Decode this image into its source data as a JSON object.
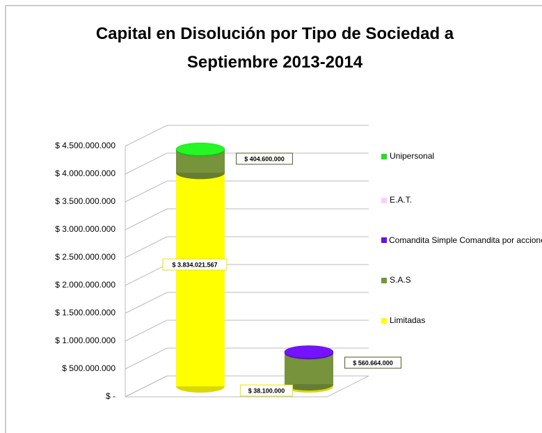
{
  "chart_data": {
    "type": "bar3d_cylinder_stacked",
    "title": "Capital en Disolución  por Tipo de Sociedad a Septiembre 2013-2014",
    "categories": [
      null,
      null
    ],
    "series": [
      {
        "name": "Limitadas",
        "color": "#ffff00",
        "values": [
          3834021567,
          38100000
        ],
        "value_labels": [
          "$ 3.834.021.567",
          "$ 38.100.000"
        ]
      },
      {
        "name": "S.A.S",
        "color": "#77933c",
        "values": [
          404600000,
          560664000
        ],
        "value_labels": [
          "$ 404.600.000",
          "$ 560.664.000"
        ]
      },
      {
        "name": "Comandita Simple Comandita por acciones",
        "color": "#6a10e8",
        "values": [
          0,
          20000000
        ]
      },
      {
        "name": "E.A.T.",
        "color": "#ffccff",
        "values": [
          0,
          0
        ]
      },
      {
        "name": "Unipersonal",
        "color": "#22e022",
        "values": [
          20000000,
          0
        ]
      }
    ],
    "ylim": [
      0,
      4500000000
    ],
    "yticks": [
      {
        "value": 0,
        "label": "$ -"
      },
      {
        "value": 500000000,
        "label": "$ 500.000.000"
      },
      {
        "value": 1000000000,
        "label": "$ 1.000.000.000"
      },
      {
        "value": 1500000000,
        "label": "$ 1.500.000.000"
      },
      {
        "value": 2000000000,
        "label": "$ 2.000.000.000"
      },
      {
        "value": 2500000000,
        "label": "$ 2.500.000.000"
      },
      {
        "value": 3000000000,
        "label": "$ 3.000.000.000"
      },
      {
        "value": 3500000000,
        "label": "$ 3.500.000.000"
      },
      {
        "value": 4000000000,
        "label": "$ 4.000.000.000"
      },
      {
        "value": 4500000000,
        "label": "$ 4.500.000.000"
      }
    ],
    "grid": true,
    "legend": "right"
  }
}
